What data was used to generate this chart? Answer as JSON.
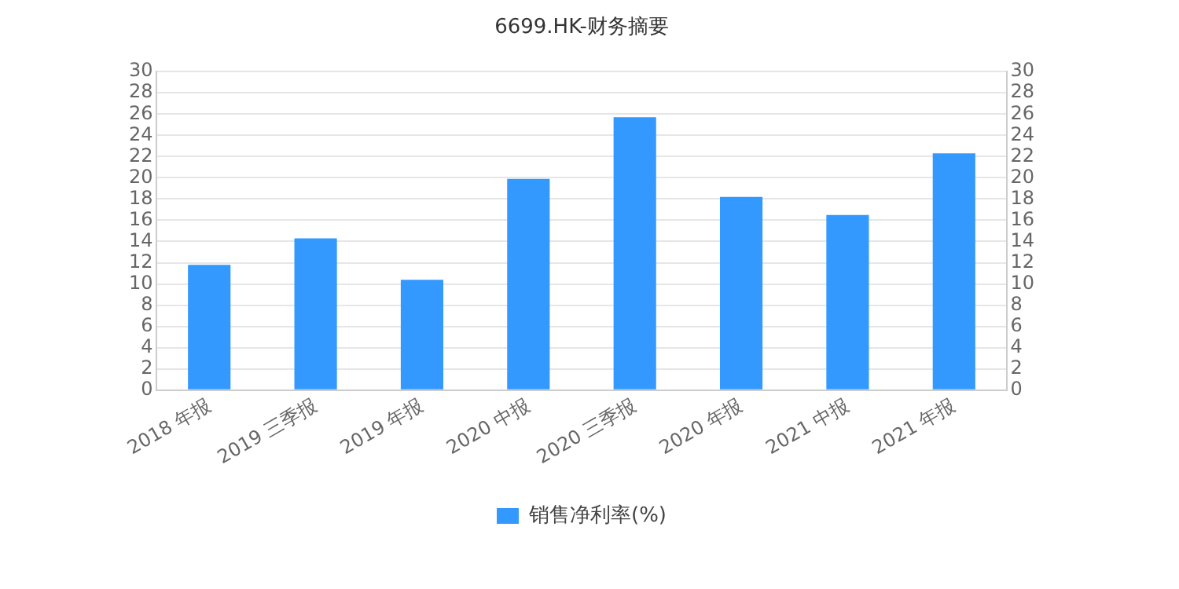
{
  "chart_data": {
    "type": "bar",
    "title": "6699.HK-财务摘要",
    "categories": [
      "2018 年报",
      "2019 三季报",
      "2019 年报",
      "2020 中报",
      "2020 三季报",
      "2020 年报",
      "2021 中报",
      "2021 年报"
    ],
    "series": [
      {
        "name": "销售净利率(%)",
        "color": "#3399ff",
        "values": [
          11.8,
          14.3,
          10.4,
          19.9,
          25.7,
          18.2,
          16.5,
          22.3
        ]
      }
    ],
    "ylim": [
      0,
      30
    ],
    "yticks": [
      0,
      2,
      4,
      6,
      8,
      10,
      12,
      14,
      16,
      18,
      20,
      22,
      24,
      26,
      28,
      30
    ],
    "y2lim": [
      0,
      30
    ],
    "y2ticks": [
      0,
      2,
      4,
      6,
      8,
      10,
      12,
      14,
      16,
      18,
      20,
      22,
      24,
      26,
      28,
      30
    ],
    "grid": "y",
    "legend": "bottom"
  }
}
